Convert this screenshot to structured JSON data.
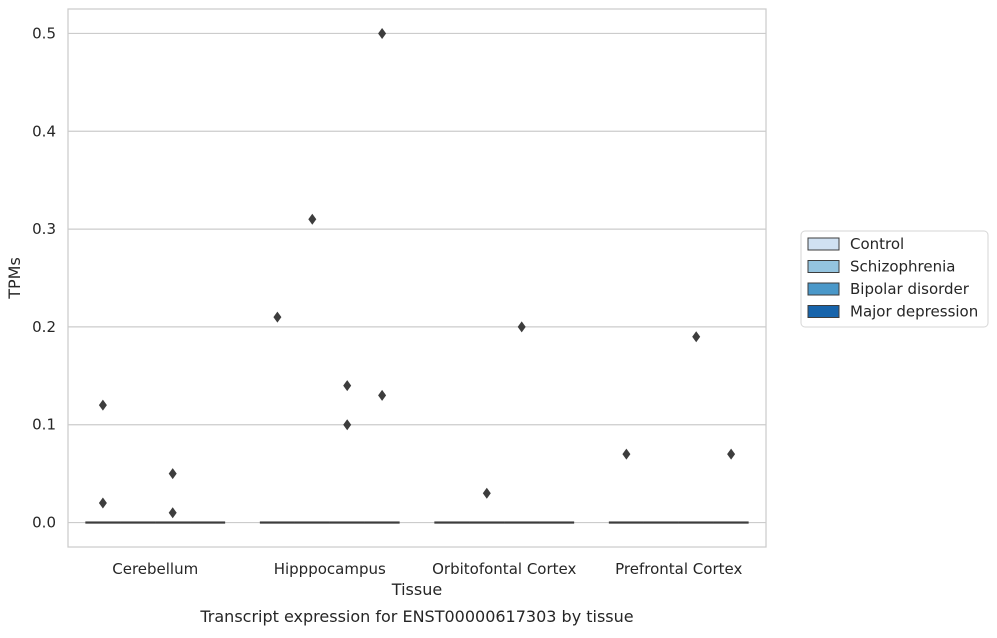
{
  "chart_data": {
    "type": "box",
    "caption": "Transcript expression for ENST00000617303 by tissue",
    "xlabel": "Tissue",
    "ylabel": "TPMs",
    "ylim": [
      -0.025,
      0.525
    ],
    "yticks": [
      "0.0",
      "0.1",
      "0.2",
      "0.3",
      "0.4",
      "0.5"
    ],
    "grid": "horizontal",
    "legend_position": "right",
    "categories": [
      "Cerebellum",
      "Hipppocampus",
      "Orbitofontal Cortex",
      "Prefrontal Cortex"
    ],
    "series": [
      {
        "name": "Control",
        "color": "#d0e1f2",
        "median": [
          0,
          0,
          0,
          0
        ],
        "outliers": [
          [
            0.12,
            0.02
          ],
          [
            0.21
          ],
          [],
          [
            0.07
          ]
        ]
      },
      {
        "name": "Schizophrenia",
        "color": "#94c4df",
        "median": [
          0,
          0,
          0,
          0
        ],
        "outliers": [
          [],
          [
            0.31
          ],
          [
            0.03
          ],
          []
        ]
      },
      {
        "name": "Bipolar disorder",
        "color": "#4a98c9",
        "median": [
          0,
          0,
          0,
          0
        ],
        "outliers": [
          [
            0.05,
            0.01
          ],
          [
            0.14,
            0.1
          ],
          [
            0.2
          ],
          [
            0.19
          ]
        ]
      },
      {
        "name": "Major depression",
        "color": "#1764ab",
        "median": [
          0,
          0,
          0,
          0
        ],
        "outliers": [
          [],
          [
            0.5,
            0.13
          ],
          [],
          [
            0.07
          ]
        ]
      }
    ]
  }
}
